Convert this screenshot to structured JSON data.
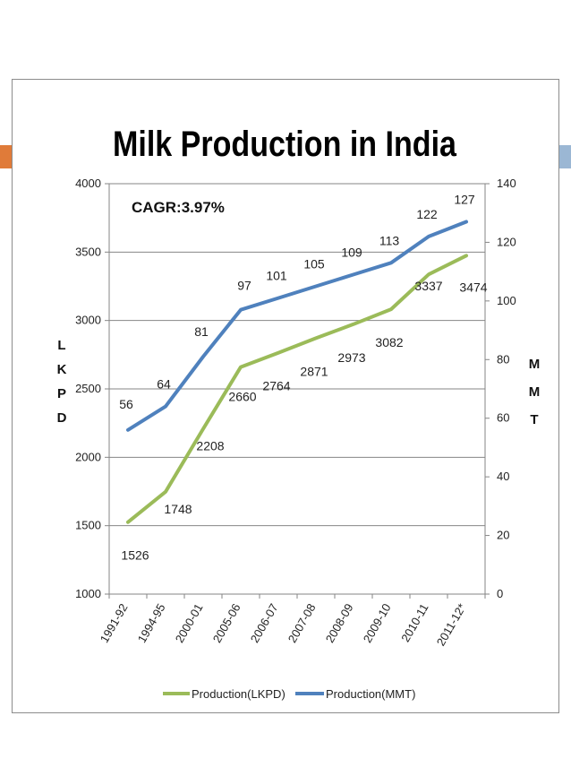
{
  "colors": {
    "accent_left": "#e07b39",
    "accent_right": "#9bb7d4",
    "lkpd_series": "#9bbb59",
    "mmt_series": "#4f81bd",
    "grid": "#868686"
  },
  "chart_data": {
    "type": "line",
    "title": "Milk Production in India",
    "annotation": "CAGR:3.97%",
    "categories": [
      "1991-92",
      "1994-95",
      "2000-01",
      "2005-06",
      "2006-07",
      "2007-08",
      "2008-09",
      "2009-10",
      "2010-11",
      "2011-12*"
    ],
    "ylabel_left": [
      "L",
      "K",
      "P",
      "D"
    ],
    "ylabel_right": [
      "M",
      "M",
      "T"
    ],
    "ylim_left": [
      1000,
      4000
    ],
    "yticks_left": [
      1000,
      1500,
      2000,
      2500,
      3000,
      3500,
      4000
    ],
    "ylim_right": [
      0,
      140
    ],
    "yticks_right": [
      0,
      20,
      40,
      60,
      80,
      100,
      120,
      140
    ],
    "grid": true,
    "legend_position": "bottom",
    "series": [
      {
        "name": "Production(LKPD)",
        "axis": "left",
        "values": [
          1526,
          1748,
          2208,
          2660,
          2764,
          2871,
          2973,
          3082,
          3337,
          3474
        ],
        "labels": [
          "1526",
          "1748",
          "2208",
          "2660",
          "2764",
          "2871",
          "2973",
          "3082",
          "3337",
          "3474"
        ]
      },
      {
        "name": "Production(MMT)",
        "axis": "right",
        "values": [
          56,
          64,
          81,
          97,
          101,
          105,
          109,
          113,
          122,
          127
        ],
        "labels": [
          "56",
          "64",
          "81",
          "97",
          "101",
          "105",
          "109",
          "113",
          "122",
          "127"
        ]
      }
    ]
  }
}
